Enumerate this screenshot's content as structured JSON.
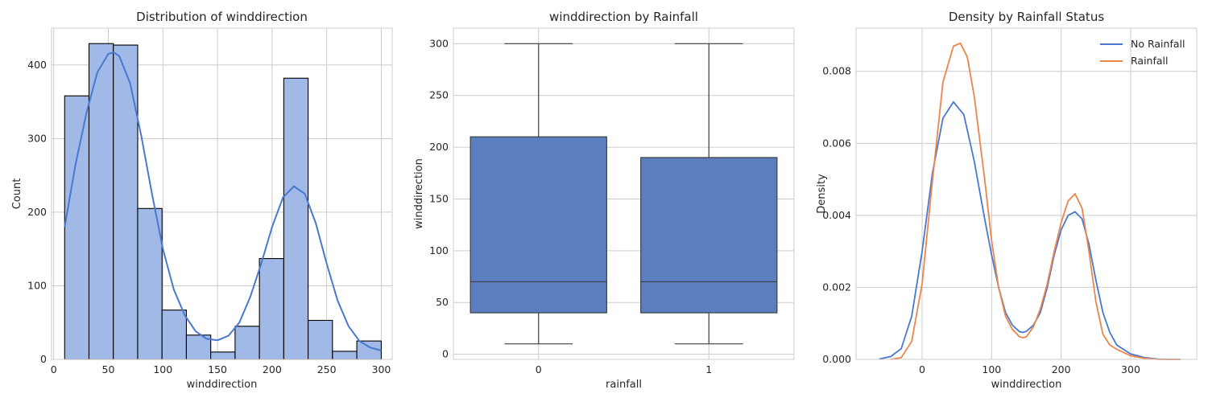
{
  "chart_data": [
    {
      "type": "histogram",
      "title": "Distribution of winddirection",
      "xlabel": "winddirection",
      "ylabel": "Count",
      "xlim": [
        -2,
        310
      ],
      "ylim": [
        0,
        450
      ],
      "xticks": [
        0,
        50,
        100,
        150,
        200,
        250,
        300
      ],
      "yticks": [
        0,
        100,
        200,
        300,
        400
      ],
      "bin_edges": [
        10,
        32.3,
        54.6,
        76.9,
        99.2,
        121.5,
        143.8,
        166.1,
        188.4,
        210.7,
        233.0,
        255.3,
        277.6,
        300
      ],
      "counts": [
        358,
        429,
        427,
        205,
        67,
        33,
        10,
        45,
        137,
        382,
        53,
        11,
        25
      ],
      "kde": [
        [
          10,
          180
        ],
        [
          20,
          265
        ],
        [
          30,
          335
        ],
        [
          40,
          390
        ],
        [
          50,
          415
        ],
        [
          55,
          417
        ],
        [
          60,
          412
        ],
        [
          70,
          375
        ],
        [
          80,
          305
        ],
        [
          90,
          225
        ],
        [
          100,
          150
        ],
        [
          110,
          95
        ],
        [
          120,
          60
        ],
        [
          130,
          38
        ],
        [
          140,
          28
        ],
        [
          150,
          26
        ],
        [
          160,
          32
        ],
        [
          170,
          50
        ],
        [
          180,
          85
        ],
        [
          190,
          130
        ],
        [
          200,
          180
        ],
        [
          210,
          220
        ],
        [
          220,
          235
        ],
        [
          230,
          225
        ],
        [
          240,
          185
        ],
        [
          250,
          130
        ],
        [
          260,
          80
        ],
        [
          270,
          45
        ],
        [
          280,
          25
        ],
        [
          290,
          16
        ],
        [
          300,
          12
        ]
      ],
      "grid": true,
      "colors": {
        "bar": "#a1b9e7",
        "edge": "#000000",
        "kde": "#4878d0"
      }
    },
    {
      "type": "box",
      "title": "winddirection by Rainfall",
      "xlabel": "rainfall",
      "ylabel": "winddirection",
      "categories": [
        "0",
        "1"
      ],
      "ylim": [
        -5,
        315
      ],
      "yticks": [
        0,
        50,
        100,
        150,
        200,
        250,
        300
      ],
      "boxes": [
        {
          "category": "0",
          "min": 10,
          "q1": 40,
          "median": 70,
          "q3": 210,
          "max": 300
        },
        {
          "category": "1",
          "min": 10,
          "q1": 40,
          "median": 70,
          "q3": 190,
          "max": 300
        }
      ],
      "grid": true,
      "colors": {
        "box": "#5b7ec1",
        "line": "#3f3f3f"
      }
    },
    {
      "type": "line",
      "title": "Density by Rainfall Status",
      "xlabel": "winddirection",
      "ylabel": "Density",
      "xlim": [
        -95,
        395
      ],
      "ylim": [
        0,
        0.0092
      ],
      "xticks": [
        0,
        100,
        200,
        300
      ],
      "yticks": [
        0.0,
        0.002,
        0.004,
        0.006,
        0.008
      ],
      "ytick_labels": [
        "0.000",
        "0.002",
        "0.004",
        "0.006",
        "0.008"
      ],
      "legend": {
        "position": "top-right",
        "entries": [
          "No Rainfall",
          "Rainfall"
        ]
      },
      "series": [
        {
          "name": "No Rainfall",
          "color": "#4878d0",
          "x": [
            -62,
            -45,
            -30,
            -15,
            0,
            15,
            30,
            45,
            60,
            75,
            90,
            100,
            110,
            120,
            130,
            140,
            145,
            150,
            160,
            170,
            180,
            190,
            200,
            210,
            220,
            230,
            240,
            250,
            260,
            270,
            280,
            300,
            320,
            340,
            360,
            372
          ],
          "y": [
            1e-05,
            8e-05,
            0.0003,
            0.0012,
            0.003,
            0.0052,
            0.0067,
            0.00715,
            0.0068,
            0.0055,
            0.0039,
            0.0029,
            0.002,
            0.0013,
            0.00095,
            0.00077,
            0.00075,
            0.00078,
            0.00095,
            0.0013,
            0.002,
            0.0029,
            0.0036,
            0.004,
            0.0041,
            0.0039,
            0.0032,
            0.0022,
            0.0013,
            0.00075,
            0.0004,
            0.00015,
            5e-05,
            1e-05,
            0.0,
            0.0
          ]
        },
        {
          "name": "Rainfall",
          "color": "#ee854a",
          "x": [
            -45,
            -30,
            -15,
            0,
            15,
            30,
            45,
            55,
            65,
            75,
            90,
            100,
            110,
            120,
            130,
            140,
            145,
            150,
            160,
            170,
            180,
            190,
            200,
            210,
            220,
            230,
            240,
            250,
            260,
            270,
            280,
            300,
            320,
            340,
            360,
            372
          ],
          "y": [
            0.0,
            5e-05,
            0.0005,
            0.0021,
            0.005,
            0.0077,
            0.0087,
            0.00878,
            0.0084,
            0.0073,
            0.005,
            0.0033,
            0.002,
            0.0012,
            0.00083,
            0.00063,
            0.0006,
            0.00063,
            0.0009,
            0.0014,
            0.0021,
            0.003,
            0.0038,
            0.0044,
            0.0046,
            0.0042,
            0.003,
            0.0016,
            0.0007,
            0.0004,
            0.00028,
            0.0001,
            3e-05,
            0.0,
            0.0,
            0.0
          ]
        }
      ],
      "grid": true
    }
  ]
}
